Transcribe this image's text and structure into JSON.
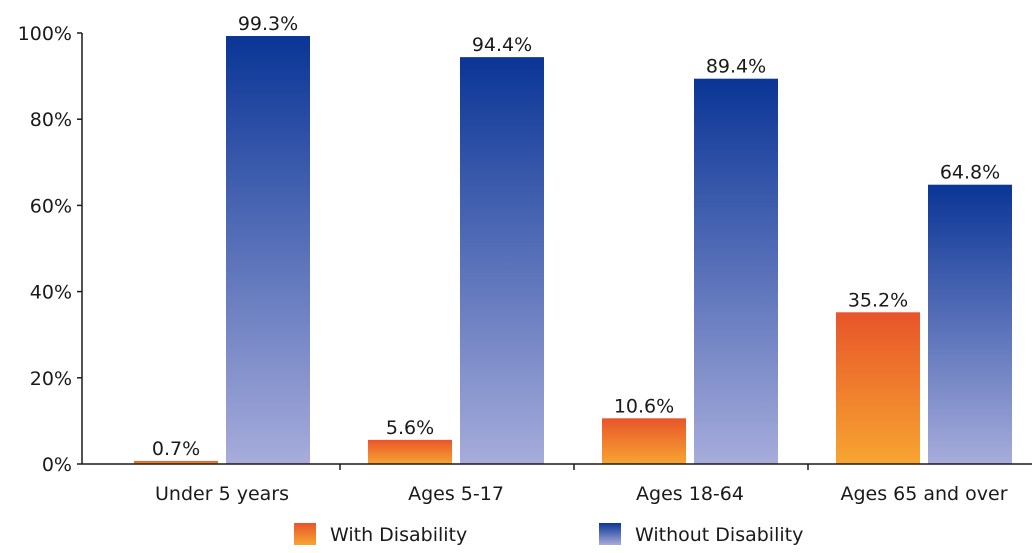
{
  "chart_data": {
    "type": "bar",
    "categories": [
      "Under 5 years",
      "Ages 5-17",
      "Ages 18-64",
      "Ages 65 and over"
    ],
    "series": [
      {
        "name": "With Disability",
        "values": [
          0.7,
          5.6,
          10.6,
          35.2
        ],
        "labels": [
          "0.7%",
          "5.6%",
          "10.6%",
          "35.2%"
        ],
        "color_top": "#e8552a",
        "color_bottom": "#f7a531"
      },
      {
        "name": "Without Disability",
        "values": [
          99.3,
          94.4,
          89.4,
          64.8
        ],
        "labels": [
          "99.3%",
          "94.4%",
          "89.4%",
          "64.8%"
        ],
        "color_top": "#0a3596",
        "color_bottom": "#a7acdb"
      }
    ],
    "yticks": [
      0,
      20,
      40,
      60,
      80,
      100
    ],
    "ytick_labels": [
      "0%",
      "20%",
      "40%",
      "60%",
      "80%",
      "100%"
    ],
    "ylim": [
      0,
      100
    ],
    "grid": false,
    "legend_position": "bottom-center",
    "title": "",
    "xlabel": "",
    "ylabel": ""
  }
}
